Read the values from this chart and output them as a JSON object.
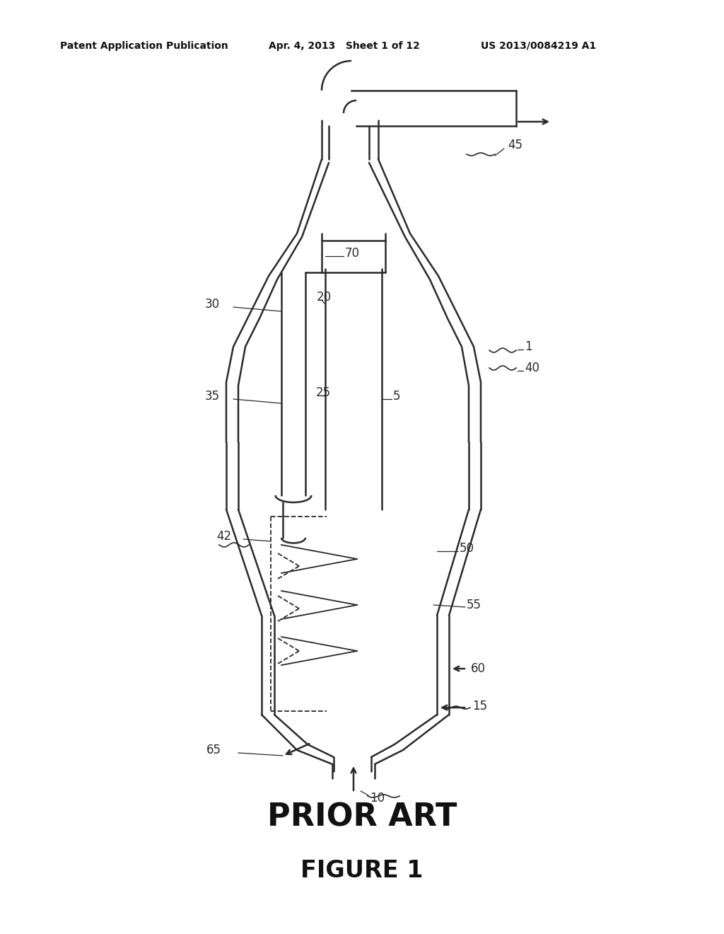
{
  "bg_color": "#ffffff",
  "line_color": "#2a2a2a",
  "header_left": "Patent Application Publication",
  "header_mid": "Apr. 4, 2013   Sheet 1 of 12",
  "header_right": "US 2013/0084219 A1",
  "footer_label1": "PRIOR ART",
  "footer_label2": "FIGURE 1",
  "fig_width": 10.24,
  "fig_height": 13.2,
  "dpi": 100
}
